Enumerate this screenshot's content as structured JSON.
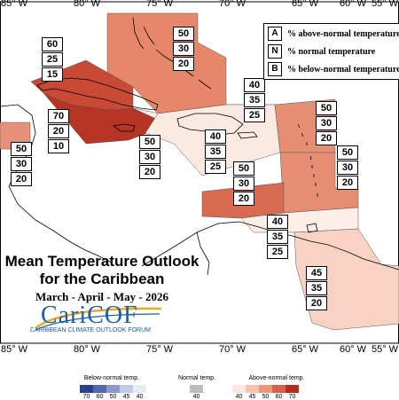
{
  "title_line1": "Mean Temperature Outlook",
  "title_line2": "for the Caribbean",
  "subtitle": "March - April - May - 2026",
  "logo": {
    "word": "CariCOF",
    "subtitle": "CARIBBEAN CLIMATE OUTLOOK FORUM"
  },
  "longitudes_top": [
    "85° W",
    "80° W",
    "75° W",
    "70° W",
    "65° W",
    "60° W",
    "55° W"
  ],
  "longitudes_bottom": [
    "85° W",
    "80° W",
    "75° W",
    "70° W",
    "65° W",
    "60° W",
    "55° W"
  ],
  "legend_key": [
    {
      "letter": "A",
      "text": "% above-normal temperature"
    },
    {
      "letter": "N",
      "text": "% normal temperature"
    },
    {
      "letter": "B",
      "text": "% below-normal temperature"
    }
  ],
  "colorbar": {
    "below_caption": "Below-normal temp.",
    "normal_caption": "Normal temp.",
    "above_caption": "Above-normal temp.",
    "below_ticks": [
      "70",
      "60",
      "50",
      "45",
      "40"
    ],
    "normal_ticks": [
      "40"
    ],
    "above_ticks": [
      "40",
      "45",
      "50",
      "60",
      "70"
    ],
    "below_colors": [
      "#2b3f8c",
      "#5567ad",
      "#8c97cc",
      "#c3c9e8",
      "#e8eaf6"
    ],
    "normal_color": "#bdbdbd",
    "above_colors": [
      "#fbe9e3",
      "#f6c3b1",
      "#ec967a",
      "#d6604a",
      "#b22d21"
    ]
  },
  "regions": [
    {
      "id": "bahamas",
      "above": 50,
      "normal": 30,
      "below": 20,
      "color": "#e6876b"
    },
    {
      "id": "cuba-west",
      "above": 60,
      "normal": 25,
      "below": 15,
      "color": "#c94a34"
    },
    {
      "id": "cuba-central-jamaica",
      "above": 70,
      "normal": 20,
      "below": 10,
      "color": "#b53424"
    },
    {
      "id": "belize",
      "above": 50,
      "normal": 30,
      "below": 20,
      "color": "#e8917a"
    },
    {
      "id": "jamaica-south",
      "above": 50,
      "normal": 30,
      "below": 20,
      "color": "#fdeee9"
    },
    {
      "id": "turks-caicos",
      "above": 40,
      "normal": 35,
      "below": 25,
      "color": "#fbe3d9"
    },
    {
      "id": "hispaniola",
      "above": 40,
      "normal": 35,
      "below": 25,
      "color": "#fce9e2"
    },
    {
      "id": "leeward-islands",
      "above": 50,
      "normal": 30,
      "below": 20,
      "color": "#e58e74"
    },
    {
      "id": "windward-islands",
      "above": 50,
      "normal": 30,
      "below": 20,
      "color": "#e58e74"
    },
    {
      "id": "puerto-rico",
      "above": 50,
      "normal": 30,
      "below": 20,
      "color": "#d96a52"
    },
    {
      "id": "trinidad-abc",
      "above": 40,
      "normal": 35,
      "below": 25,
      "color": "#fdeee8"
    },
    {
      "id": "guianas",
      "above": 45,
      "normal": 35,
      "below": 20,
      "color": "#f8d3c3"
    }
  ]
}
